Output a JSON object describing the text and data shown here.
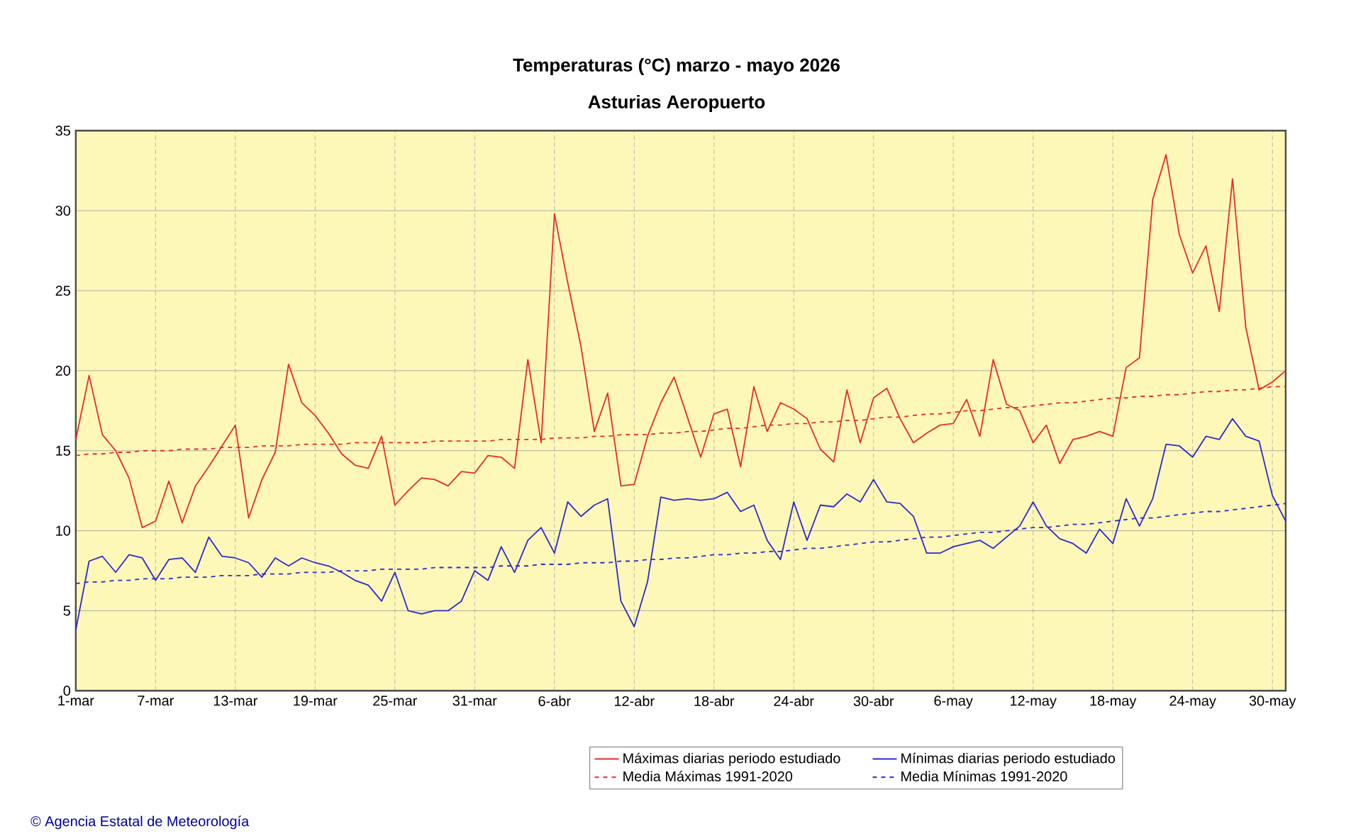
{
  "chart_data": {
    "type": "line",
    "title": "Temperaturas (°C) marzo - mayo 2026",
    "subtitle": "Asturias Aeropuerto",
    "categories": [
      "1-mar",
      null,
      null,
      null,
      null,
      null,
      "7-mar",
      null,
      null,
      null,
      null,
      null,
      "13-mar",
      null,
      null,
      null,
      null,
      null,
      "19-mar",
      null,
      null,
      null,
      null,
      null,
      "25-mar",
      null,
      null,
      null,
      null,
      null,
      "31-mar",
      null,
      null,
      null,
      null,
      null,
      "6-abr",
      null,
      null,
      null,
      null,
      null,
      "12-abr",
      null,
      null,
      null,
      null,
      null,
      "18-abr",
      null,
      null,
      null,
      null,
      null,
      "24-abr",
      null,
      null,
      null,
      null,
      null,
      "30-abr",
      null,
      null,
      null,
      null,
      null,
      "6-may",
      null,
      null,
      null,
      null,
      null,
      "12-may",
      null,
      null,
      null,
      null,
      null,
      "18-may",
      null,
      null,
      null,
      null,
      null,
      "24-may",
      null,
      null,
      null,
      null,
      null,
      "30-may",
      null
    ],
    "series": [
      {
        "name": "Máximas diarias periodo estudiado",
        "color": "#e82c2c",
        "line_style": "solid",
        "values": [
          15.7,
          19.7,
          16.0,
          15.0,
          13.3,
          10.2,
          10.6,
          13.1,
          10.5,
          12.8,
          14.0,
          15.3,
          16.6,
          10.8,
          13.2,
          14.9,
          20.4,
          18.0,
          17.2,
          16.1,
          14.8,
          14.1,
          13.9,
          15.9,
          11.6,
          12.5,
          13.3,
          13.2,
          12.8,
          13.7,
          13.6,
          14.7,
          14.6,
          13.9,
          20.7,
          15.5,
          29.8,
          25.5,
          21.5,
          16.2,
          18.6,
          12.8,
          12.9,
          15.9,
          18.0,
          19.6,
          17.1,
          14.6,
          17.3,
          17.6,
          14.0,
          19.0,
          16.2,
          18.0,
          17.6,
          17.0,
          15.1,
          14.3,
          18.8,
          15.5,
          18.3,
          18.9,
          17.0,
          15.5,
          16.1,
          16.6,
          16.7,
          18.2,
          15.9,
          20.7,
          17.9,
          17.5,
          15.5,
          16.6,
          14.2,
          15.7,
          15.9,
          16.2,
          15.9,
          20.2,
          20.8,
          30.7,
          33.5,
          28.5,
          26.1,
          27.8,
          23.7,
          32.0,
          22.7,
          18.8,
          19.3,
          20.0
        ]
      },
      {
        "name": "Mínimas diarias periodo estudiado",
        "color": "#2a2ad0",
        "line_style": "solid",
        "values": [
          3.8,
          8.1,
          8.4,
          7.4,
          8.5,
          8.3,
          6.9,
          8.2,
          8.3,
          7.4,
          9.6,
          8.4,
          8.3,
          8.0,
          7.1,
          8.3,
          7.8,
          8.3,
          8.0,
          7.8,
          7.4,
          6.9,
          6.6,
          5.6,
          7.4,
          5.0,
          4.8,
          5.0,
          5.0,
          5.6,
          7.5,
          6.9,
          9.0,
          7.4,
          9.4,
          10.2,
          8.6,
          11.8,
          10.9,
          11.6,
          12.0,
          5.6,
          4.0,
          6.8,
          12.1,
          11.9,
          12.0,
          11.9,
          12.0,
          12.4,
          11.2,
          11.6,
          9.4,
          8.2,
          11.8,
          9.4,
          11.6,
          11.5,
          12.3,
          11.8,
          13.2,
          11.8,
          11.7,
          10.9,
          8.6,
          8.6,
          9.0,
          9.2,
          9.4,
          8.9,
          9.6,
          10.3,
          11.8,
          10.3,
          9.5,
          9.2,
          8.6,
          10.1,
          9.2,
          12.0,
          10.3,
          12.0,
          15.4,
          15.3,
          14.6,
          15.9,
          15.7,
          17.0,
          15.9,
          15.6,
          12.2,
          10.6
        ]
      },
      {
        "name": "Media Máximas 1991-2020",
        "color": "#e82c2c",
        "line_style": "dashed",
        "values": [
          14.7,
          14.8,
          14.8,
          14.9,
          14.9,
          15.0,
          15.0,
          15.0,
          15.1,
          15.1,
          15.1,
          15.2,
          15.2,
          15.2,
          15.3,
          15.3,
          15.3,
          15.4,
          15.4,
          15.4,
          15.4,
          15.5,
          15.5,
          15.5,
          15.5,
          15.5,
          15.5,
          15.6,
          15.6,
          15.6,
          15.6,
          15.6,
          15.7,
          15.7,
          15.7,
          15.7,
          15.8,
          15.8,
          15.8,
          15.9,
          15.9,
          16.0,
          16.0,
          16.0,
          16.1,
          16.1,
          16.2,
          16.2,
          16.3,
          16.4,
          16.4,
          16.5,
          16.6,
          16.6,
          16.7,
          16.7,
          16.8,
          16.8,
          16.9,
          16.9,
          17.0,
          17.1,
          17.1,
          17.2,
          17.3,
          17.3,
          17.4,
          17.5,
          17.5,
          17.6,
          17.7,
          17.7,
          17.8,
          17.9,
          18.0,
          18.0,
          18.1,
          18.2,
          18.3,
          18.3,
          18.4,
          18.4,
          18.5,
          18.5,
          18.6,
          18.7,
          18.7,
          18.8,
          18.8,
          18.9,
          19.0,
          19.0
        ]
      },
      {
        "name": "Media Mínimas 1991-2020",
        "color": "#2a2ad0",
        "line_style": "dashed",
        "values": [
          6.7,
          6.8,
          6.8,
          6.9,
          6.9,
          7.0,
          7.0,
          7.0,
          7.1,
          7.1,
          7.1,
          7.2,
          7.2,
          7.2,
          7.3,
          7.3,
          7.3,
          7.4,
          7.4,
          7.4,
          7.5,
          7.5,
          7.5,
          7.6,
          7.6,
          7.6,
          7.6,
          7.7,
          7.7,
          7.7,
          7.7,
          7.7,
          7.8,
          7.8,
          7.8,
          7.9,
          7.9,
          7.9,
          8.0,
          8.0,
          8.0,
          8.1,
          8.1,
          8.2,
          8.2,
          8.3,
          8.3,
          8.4,
          8.5,
          8.5,
          8.6,
          8.6,
          8.7,
          8.7,
          8.8,
          8.9,
          8.9,
          9.0,
          9.1,
          9.2,
          9.3,
          9.3,
          9.4,
          9.5,
          9.6,
          9.6,
          9.7,
          9.8,
          9.9,
          9.9,
          10.0,
          10.1,
          10.2,
          10.2,
          10.3,
          10.4,
          10.4,
          10.5,
          10.6,
          10.7,
          10.8,
          10.8,
          10.9,
          11.0,
          11.1,
          11.2,
          11.2,
          11.3,
          11.4,
          11.5,
          11.6,
          11.7
        ]
      }
    ],
    "ylim": [
      0,
      35
    ],
    "yticks": [
      0,
      5,
      10,
      15,
      20,
      25,
      30,
      35
    ],
    "grid": true,
    "legend": "bottom",
    "annotations": [
      "© Agencia Estatal de Meteorología"
    ]
  }
}
